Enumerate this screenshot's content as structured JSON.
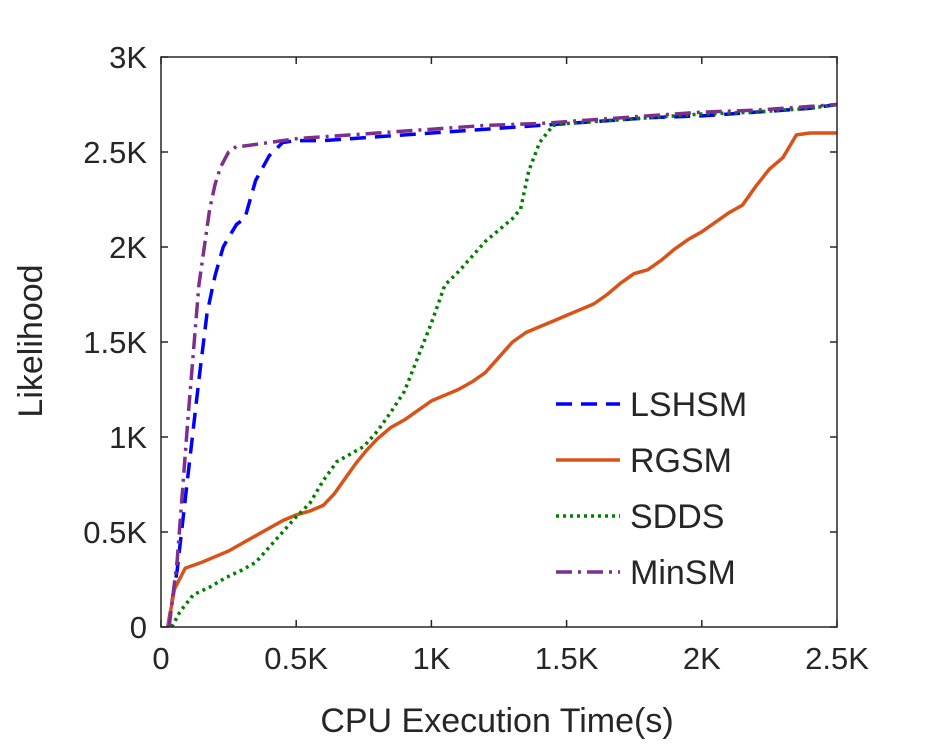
{
  "chart_data": {
    "type": "line",
    "title": "",
    "xlabel": "CPU Execution Time(s)",
    "ylabel": "Likelihood",
    "xlim": [
      0,
      2500
    ],
    "ylim": [
      0,
      3000
    ],
    "xticks": [
      0,
      500,
      1000,
      1500,
      2000,
      2500
    ],
    "xtick_labels": [
      "0",
      "0.5K",
      "1K",
      "1.5K",
      "2K",
      "2.5K"
    ],
    "yticks": [
      0,
      500,
      1000,
      1500,
      2000,
      2500,
      3000
    ],
    "ytick_labels": [
      "0",
      "0.5K",
      "1K",
      "1.5K",
      "2K",
      "2.5K",
      "3K"
    ],
    "grid": false,
    "legend_position": "bottom-right",
    "series": [
      {
        "name": "LSHSM",
        "color": "#0000ff",
        "dash": "dashed",
        "x": [
          25,
          60,
          100,
          140,
          170,
          200,
          230,
          250,
          280,
          310,
          350,
          400,
          450,
          500,
          600,
          800,
          1000,
          1200,
          1400,
          1600,
          1800,
          2000,
          2200,
          2400,
          2500
        ],
        "y": [
          0,
          300,
          800,
          1300,
          1650,
          1850,
          2000,
          2050,
          2120,
          2150,
          2350,
          2480,
          2550,
          2560,
          2560,
          2580,
          2600,
          2620,
          2640,
          2660,
          2680,
          2690,
          2710,
          2730,
          2750
        ]
      },
      {
        "name": "RGSM",
        "color": "#d95319",
        "dash": "solid",
        "x": [
          25,
          50,
          90,
          150,
          200,
          250,
          300,
          350,
          400,
          450,
          500,
          550,
          600,
          640,
          680,
          720,
          760,
          800,
          850,
          900,
          950,
          1000,
          1050,
          1100,
          1150,
          1200,
          1250,
          1300,
          1350,
          1400,
          1450,
          1500,
          1550,
          1600,
          1650,
          1700,
          1750,
          1800,
          1850,
          1900,
          1950,
          2000,
          2050,
          2100,
          2150,
          2200,
          2250,
          2300,
          2350,
          2400,
          2450,
          2500
        ],
        "y": [
          0,
          200,
          310,
          340,
          370,
          400,
          440,
          480,
          520,
          560,
          590,
          610,
          640,
          700,
          780,
          860,
          930,
          990,
          1050,
          1090,
          1140,
          1190,
          1220,
          1250,
          1290,
          1340,
          1420,
          1500,
          1550,
          1580,
          1610,
          1640,
          1670,
          1700,
          1750,
          1810,
          1860,
          1880,
          1930,
          1990,
          2040,
          2080,
          2130,
          2180,
          2220,
          2320,
          2410,
          2470,
          2590,
          2600,
          2600,
          2600
        ]
      },
      {
        "name": "SDDS",
        "color": "#007f00",
        "dash": "dotted",
        "x": [
          40,
          70,
          120,
          180,
          240,
          300,
          350,
          400,
          450,
          500,
          550,
          600,
          650,
          700,
          750,
          800,
          850,
          900,
          950,
          1000,
          1050,
          1100,
          1150,
          1200,
          1250,
          1300,
          1330,
          1360,
          1400,
          1450,
          1500,
          1600,
          1800,
          2000,
          2200,
          2400,
          2500
        ],
        "y": [
          0,
          80,
          170,
          210,
          260,
          300,
          340,
          420,
          500,
          580,
          650,
          770,
          870,
          910,
          950,
          1030,
          1130,
          1240,
          1420,
          1600,
          1800,
          1870,
          1950,
          2030,
          2090,
          2150,
          2200,
          2400,
          2550,
          2640,
          2650,
          2660,
          2680,
          2700,
          2710,
          2730,
          2750
        ]
      },
      {
        "name": "MinSM",
        "color": "#7e2f8e",
        "dash": "dashdot",
        "x": [
          30,
          60,
          100,
          140,
          180,
          200,
          220,
          250,
          280,
          300,
          400,
          500,
          600,
          800,
          1000,
          1200,
          1400,
          1600,
          1800,
          2000,
          2200,
          2400,
          2500
        ],
        "y": [
          0,
          350,
          1100,
          1800,
          2200,
          2330,
          2420,
          2500,
          2530,
          2530,
          2550,
          2570,
          2580,
          2600,
          2620,
          2640,
          2650,
          2670,
          2690,
          2710,
          2720,
          2740,
          2750
        ]
      }
    ]
  }
}
